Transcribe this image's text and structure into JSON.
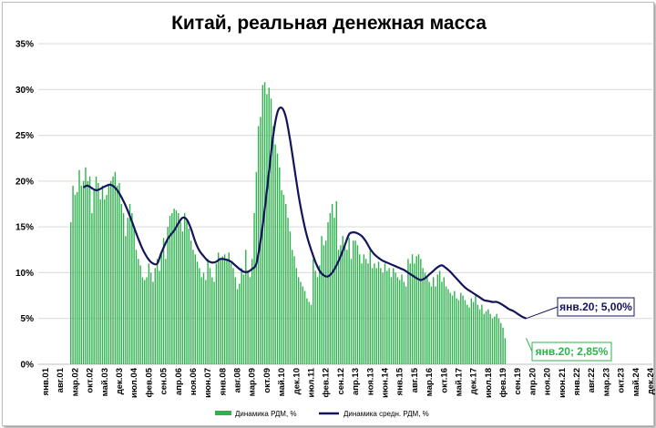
{
  "chart_data": {
    "type": "bar",
    "title": "Китай, реальная денежная масса",
    "xlabel": "",
    "ylabel": "",
    "ylim": [
      0,
      35
    ],
    "y_ticks": [
      "0%",
      "5%",
      "10%",
      "15%",
      "20%",
      "25%",
      "30%",
      "35%"
    ],
    "x_ticks": [
      "янв.01",
      "авг.01",
      "мар.02",
      "окт.02",
      "май.03",
      "дек.03",
      "июл.04",
      "фев.05",
      "сен.05",
      "апр.06",
      "ноя.06",
      "июн.07",
      "янв.08",
      "авг.08",
      "мар.09",
      "окт.09",
      "май.10",
      "дек.10",
      "июл.11",
      "фев.12",
      "сен.12",
      "апр.13",
      "ноя.13",
      "июн.14",
      "янв.15",
      "авг.15",
      "мар.16",
      "окт.16",
      "май.17",
      "дек.17",
      "июл.18",
      "фев.19",
      "сен.19",
      "апр.20",
      "ноя.20",
      "июн.21",
      "янв.22",
      "авг.22",
      "мар.23",
      "окт.23",
      "май.24",
      "дек.24"
    ],
    "tick_step_months": 7,
    "start_month": "янв.01",
    "grid": true,
    "legend_position": "bottom",
    "series": [
      {
        "name": "Динамика  РДМ, %",
        "kind": "bar",
        "color": "#2eb24d",
        "values": [
          0,
          0,
          0,
          0,
          0,
          0,
          0,
          0,
          0,
          0,
          0,
          0,
          15.5,
          19.5,
          18.5,
          18.8,
          21.2,
          19.5,
          20.0,
          21.5,
          20.0,
          20.5,
          16.5,
          19.0,
          20.5,
          19.8,
          18.0,
          19.5,
          18.0,
          18.5,
          19.5,
          20.0,
          20.5,
          21.0,
          19.5,
          19.8,
          17.5,
          16.5,
          14.0,
          16.0,
          17.5,
          16.5,
          15.0,
          12.5,
          11.5,
          10.8,
          9.5,
          9.2,
          9.5,
          11.0,
          10.0,
          9.0,
          10.5,
          11.5,
          10.2,
          12.0,
          13.8,
          11.5,
          15.0,
          16.2,
          16.5,
          17.0,
          16.8,
          16.5,
          15.5,
          14.5,
          16.5,
          15.8,
          14.8,
          13.5,
          12.5,
          12.0,
          11.2,
          10.5,
          9.5,
          10.0,
          9.2,
          11.5,
          10.5,
          9.5,
          9.0,
          11.0,
          12.2,
          11.5,
          11.8,
          12.0,
          11.5,
          12.2,
          11.0,
          10.5,
          9.5,
          8.2,
          8.8,
          10.5,
          9.8,
          12.5,
          10.2,
          9.5,
          11.5,
          16.5,
          21.0,
          26.0,
          27.0,
          30.5,
          30.8,
          29.5,
          30.2,
          29.0,
          26.0,
          24.0,
          23.0,
          21.5,
          19.0,
          18.5,
          17.5,
          16.0,
          14.5,
          12.5,
          11.8,
          10.5,
          9.5,
          9.0,
          8.5,
          8.0,
          7.2,
          6.8,
          6.5,
          11.5,
          10.2,
          9.5,
          10.8,
          14.0,
          13.0,
          13.5,
          15.5,
          16.5,
          17.5,
          16.0,
          17.8,
          12.5,
          13.0,
          14.0,
          13.2,
          12.5,
          13.8,
          11.5,
          13.5,
          13.5,
          13.0,
          12.0,
          11.0,
          12.0,
          11.5,
          11.0,
          12.5,
          10.5,
          11.0,
          10.5,
          11.2,
          10.5,
          10.0,
          11.0,
          10.2,
          10.5,
          9.5,
          10.5,
          10.0,
          9.5,
          9.2,
          9.8,
          9.0,
          8.5,
          11.5,
          11.0,
          12.0,
          11.0,
          11.8,
          12.0,
          11.5,
          10.5,
          10.0,
          9.5,
          9.0,
          8.5,
          9.5,
          8.5,
          9.8,
          10.2,
          9.0,
          9.5,
          8.5,
          8.2,
          7.8,
          7.5,
          8.0,
          7.2,
          7.0,
          7.8,
          7.5,
          7.0,
          6.5,
          6.2,
          7.2,
          6.8,
          7.5,
          6.5,
          6.0,
          6.5,
          5.5,
          5.8,
          6.0,
          5.5,
          5.0,
          5.2,
          5.5,
          5.0,
          4.5,
          4.0,
          2.85
        ]
      },
      {
        "name": "Динамика  средн. РДМ, %",
        "kind": "line",
        "color": "#14145c",
        "points": [
          [
            18,
            19.3
          ],
          [
            20,
            19.5
          ],
          [
            24,
            19.0
          ],
          [
            28,
            19.4
          ],
          [
            31,
            19.6
          ],
          [
            34,
            19.0
          ],
          [
            37,
            17.8
          ],
          [
            40,
            16.2
          ],
          [
            43,
            14.3
          ],
          [
            46,
            12.6
          ],
          [
            49,
            11.4
          ],
          [
            51,
            11.0
          ],
          [
            53,
            11.0
          ],
          [
            55,
            12.2
          ],
          [
            58,
            13.7
          ],
          [
            61,
            14.6
          ],
          [
            63,
            15.4
          ],
          [
            65,
            16.0
          ],
          [
            67,
            15.8
          ],
          [
            69,
            14.8
          ],
          [
            71,
            13.4
          ],
          [
            73,
            12.4
          ],
          [
            75,
            11.8
          ],
          [
            77,
            11.3
          ],
          [
            79,
            11.1
          ],
          [
            81,
            11.2
          ],
          [
            83,
            11.5
          ],
          [
            86,
            11.4
          ],
          [
            88,
            11.2
          ],
          [
            90,
            10.8
          ],
          [
            92,
            10.4
          ],
          [
            94,
            10.1
          ],
          [
            96,
            10.1
          ],
          [
            98,
            10.4
          ],
          [
            100,
            11.0
          ],
          [
            102,
            13.5
          ],
          [
            104,
            17.0
          ],
          [
            106,
            21.0
          ],
          [
            108,
            25.0
          ],
          [
            110,
            27.5
          ],
          [
            112,
            28.0
          ],
          [
            114,
            27.0
          ],
          [
            116,
            24.5
          ],
          [
            118,
            21.5
          ],
          [
            120,
            18.5
          ],
          [
            122,
            16.0
          ],
          [
            124,
            14.0
          ],
          [
            126,
            12.5
          ],
          [
            128,
            11.2
          ],
          [
            130,
            10.2
          ],
          [
            132,
            9.7
          ],
          [
            134,
            9.6
          ],
          [
            136,
            10.0
          ],
          [
            138,
            10.8
          ],
          [
            140,
            11.8
          ],
          [
            142,
            13.0
          ],
          [
            144,
            14.2
          ],
          [
            146,
            14.4
          ],
          [
            148,
            14.3
          ],
          [
            150,
            14.0
          ],
          [
            152,
            13.4
          ],
          [
            154,
            12.6
          ],
          [
            156,
            12.0
          ],
          [
            158,
            11.6
          ],
          [
            160,
            11.3
          ],
          [
            162,
            11.1
          ],
          [
            164,
            10.9
          ],
          [
            166,
            10.7
          ],
          [
            168,
            10.5
          ],
          [
            170,
            10.3
          ],
          [
            172,
            10.0
          ],
          [
            174,
            9.7
          ],
          [
            176,
            9.4
          ],
          [
            178,
            9.2
          ],
          [
            180,
            9.4
          ],
          [
            182,
            9.8
          ],
          [
            184,
            10.2
          ],
          [
            186,
            10.6
          ],
          [
            188,
            10.8
          ],
          [
            190,
            10.5
          ],
          [
            192,
            10.1
          ],
          [
            194,
            9.6
          ],
          [
            196,
            9.1
          ],
          [
            198,
            8.6
          ],
          [
            200,
            8.2
          ],
          [
            202,
            7.9
          ],
          [
            204,
            7.6
          ],
          [
            206,
            7.3
          ],
          [
            208,
            7.0
          ],
          [
            210,
            6.9
          ],
          [
            212,
            6.8
          ],
          [
            214,
            6.8
          ],
          [
            216,
            6.6
          ],
          [
            218,
            6.3
          ],
          [
            220,
            6.0
          ],
          [
            222,
            5.8
          ],
          [
            224,
            5.5
          ],
          [
            226,
            5.2
          ],
          [
            228,
            5.0
          ]
        ]
      }
    ],
    "annotations": [
      {
        "text": "янв.20; 5,00%",
        "series": 1,
        "x": 228,
        "y": 5.0
      },
      {
        "text": "янв.20; 2,85%",
        "series": 0,
        "x": 228,
        "y": 2.85
      }
    ]
  }
}
